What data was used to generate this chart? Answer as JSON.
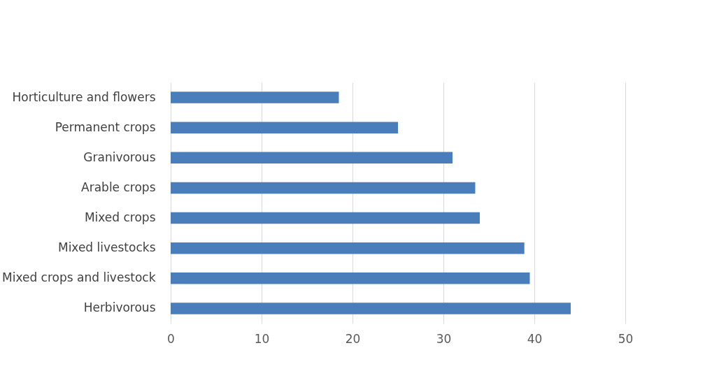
{
  "chart_data": {
    "type": "bar",
    "orientation": "horizontal",
    "categories": [
      "Horticulture and flowers",
      "Permanent crops",
      "Granivorous",
      "Arable crops",
      "Mixed crops",
      "Mixed livestocks",
      "Mixed crops and livestock",
      "Herbivorous"
    ],
    "values": [
      18.5,
      25,
      31,
      33.5,
      34,
      38.9,
      39.5,
      44
    ],
    "color": "#4a7ebb",
    "xlim": [
      0,
      50
    ],
    "xticks": [
      0,
      10,
      20,
      30,
      40,
      50
    ],
    "grid": "x"
  }
}
